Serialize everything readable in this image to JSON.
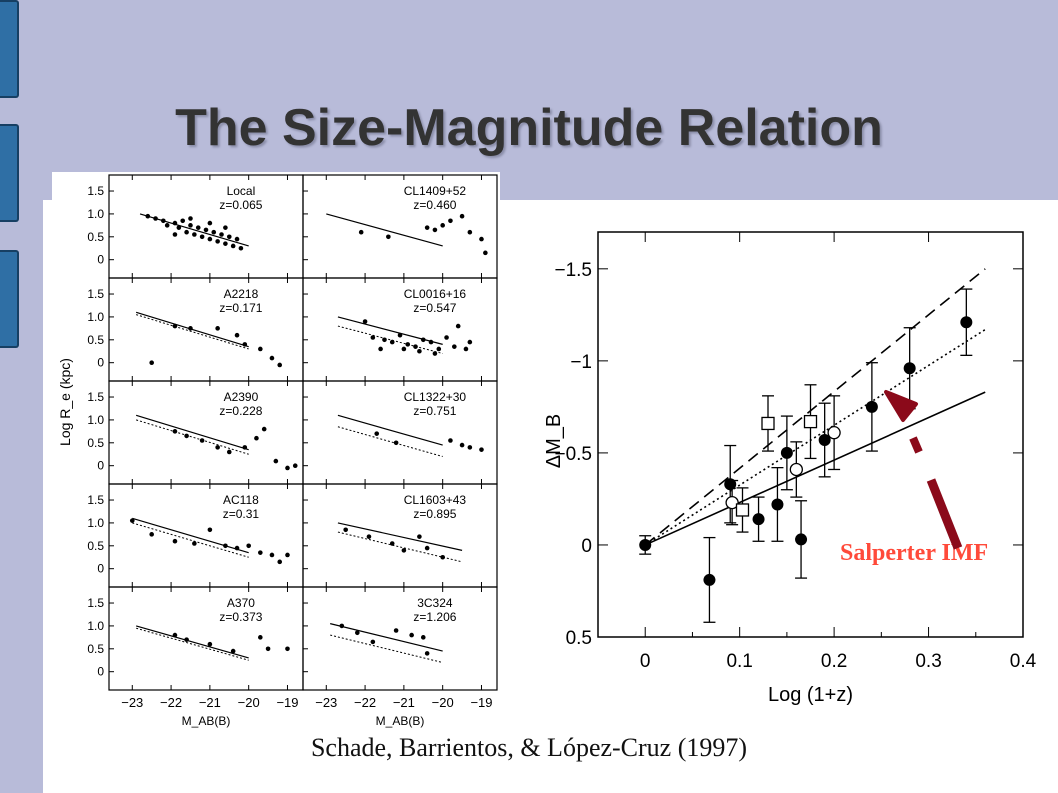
{
  "slide": {
    "title": "The Size-Magnitude Relation",
    "citation": "Schade, Barrientos, & López-Cruz (1997)",
    "annotation": "Salperter IMF",
    "colors": {
      "background": "#b8bbd9",
      "tab": "#2f6fa5",
      "annotation": "#ff4a3a",
      "arrow": "#8b0a1a"
    }
  },
  "chart_data": [
    {
      "type": "scatter",
      "layout_grid": "5x2",
      "ylabel": "Log R_e (kpc)",
      "xlabel": "M_AB(B)",
      "xlim": [
        -23.6,
        -18.6
      ],
      "ylim": [
        -0.4,
        1.85
      ],
      "xticks": [
        "−23",
        "−22",
        "−21",
        "−20",
        "−19"
      ],
      "yticks": [
        "1.5",
        "1.0",
        "0.5",
        "0"
      ],
      "panels": [
        {
          "name": "Local",
          "z": "z=0.065",
          "line": [
            [
              -22.8,
              1.0
            ],
            [
              -20.0,
              0.3
            ]
          ],
          "dotted": null,
          "points": [
            [
              -22.6,
              0.95
            ],
            [
              -22.4,
              0.9
            ],
            [
              -22.2,
              0.85
            ],
            [
              -22.1,
              0.75
            ],
            [
              -21.9,
              0.8
            ],
            [
              -21.8,
              0.7
            ],
            [
              -21.7,
              0.85
            ],
            [
              -21.6,
              0.6
            ],
            [
              -21.5,
              0.75
            ],
            [
              -21.4,
              0.55
            ],
            [
              -21.3,
              0.7
            ],
            [
              -21.2,
              0.5
            ],
            [
              -21.1,
              0.65
            ],
            [
              -21.0,
              0.45
            ],
            [
              -20.9,
              0.6
            ],
            [
              -20.8,
              0.4
            ],
            [
              -20.7,
              0.55
            ],
            [
              -20.6,
              0.35
            ],
            [
              -20.5,
              0.5
            ],
            [
              -20.4,
              0.3
            ],
            [
              -20.3,
              0.45
            ],
            [
              -20.2,
              0.25
            ],
            [
              -21.9,
              0.55
            ],
            [
              -21.5,
              0.9
            ],
            [
              -21.0,
              0.8
            ],
            [
              -20.6,
              0.7
            ]
          ]
        },
        {
          "name": "CL1409+52",
          "z": "z=0.460",
          "line": [
            [
              -23.0,
              1.0
            ],
            [
              -20.0,
              0.3
            ]
          ],
          "dotted": null,
          "points": [
            [
              -22.1,
              0.6
            ],
            [
              -21.4,
              0.5
            ],
            [
              -20.4,
              0.7
            ],
            [
              -20.2,
              0.65
            ],
            [
              -20.0,
              0.75
            ],
            [
              -19.8,
              0.85
            ],
            [
              -19.5,
              0.95
            ],
            [
              -19.3,
              0.6
            ],
            [
              -19.0,
              0.45
            ],
            [
              -18.9,
              0.15
            ]
          ]
        },
        {
          "name": "A2218",
          "z": "z=0.171",
          "line": [
            [
              -22.9,
              1.1
            ],
            [
              -20.0,
              0.35
            ]
          ],
          "dotted": [
            [
              -22.9,
              1.05
            ],
            [
              -20.0,
              0.3
            ]
          ],
          "points": [
            [
              -21.9,
              0.8
            ],
            [
              -21.5,
              0.75
            ],
            [
              -20.8,
              0.75
            ],
            [
              -20.3,
              0.6
            ],
            [
              -20.1,
              0.4
            ],
            [
              -19.7,
              0.3
            ],
            [
              -19.4,
              0.1
            ],
            [
              -19.2,
              -0.05
            ],
            [
              -22.5,
              0.0
            ]
          ]
        },
        {
          "name": "CL0016+16",
          "z": "z=0.547",
          "line": [
            [
              -22.7,
              1.0
            ],
            [
              -20.0,
              0.4
            ]
          ],
          "dotted": [
            [
              -22.7,
              0.8
            ],
            [
              -20.0,
              0.2
            ]
          ],
          "points": [
            [
              -22.0,
              0.9
            ],
            [
              -21.8,
              0.55
            ],
            [
              -21.5,
              0.5
            ],
            [
              -21.3,
              0.45
            ],
            [
              -21.1,
              0.6
            ],
            [
              -20.9,
              0.4
            ],
            [
              -20.7,
              0.35
            ],
            [
              -20.5,
              0.5
            ],
            [
              -20.3,
              0.45
            ],
            [
              -20.1,
              0.3
            ],
            [
              -19.9,
              0.55
            ],
            [
              -19.7,
              0.35
            ],
            [
              -19.6,
              0.8
            ],
            [
              -19.4,
              0.3
            ],
            [
              -19.3,
              0.45
            ],
            [
              -21.6,
              0.3
            ],
            [
              -21.0,
              0.3
            ],
            [
              -20.6,
              0.25
            ],
            [
              -20.2,
              0.2
            ]
          ]
        },
        {
          "name": "A2390",
          "z": "z=0.228",
          "line": [
            [
              -22.9,
              1.1
            ],
            [
              -20.0,
              0.35
            ]
          ],
          "dotted": [
            [
              -22.9,
              1.0
            ],
            [
              -20.0,
              0.25
            ]
          ],
          "points": [
            [
              -21.9,
              0.75
            ],
            [
              -21.6,
              0.65
            ],
            [
              -21.2,
              0.55
            ],
            [
              -20.8,
              0.4
            ],
            [
              -20.5,
              0.3
            ],
            [
              -20.1,
              0.4
            ],
            [
              -19.8,
              0.6
            ],
            [
              -19.6,
              0.8
            ],
            [
              -19.3,
              0.1
            ],
            [
              -19.0,
              -0.05
            ],
            [
              -18.8,
              0.0
            ]
          ]
        },
        {
          "name": "CL1322+30",
          "z": "z=0.751",
          "line": [
            [
              -22.7,
              1.1
            ],
            [
              -20.0,
              0.45
            ]
          ],
          "dotted": [
            [
              -22.7,
              0.85
            ],
            [
              -20.0,
              0.2
            ]
          ],
          "points": [
            [
              -21.7,
              0.7
            ],
            [
              -21.2,
              0.5
            ],
            [
              -19.8,
              0.55
            ],
            [
              -19.5,
              0.45
            ],
            [
              -19.3,
              0.4
            ],
            [
              -19.0,
              0.35
            ]
          ]
        },
        {
          "name": "AC118",
          "z": "z=0.31",
          "line": [
            [
              -23.0,
              1.1
            ],
            [
              -20.0,
              0.35
            ]
          ],
          "dotted": [
            [
              -23.0,
              1.0
            ],
            [
              -20.0,
              0.25
            ]
          ],
          "points": [
            [
              -23.0,
              1.05
            ],
            [
              -22.5,
              0.75
            ],
            [
              -21.9,
              0.6
            ],
            [
              -21.4,
              0.55
            ],
            [
              -21.0,
              0.85
            ],
            [
              -20.6,
              0.5
            ],
            [
              -20.3,
              0.45
            ],
            [
              -20.0,
              0.5
            ],
            [
              -19.7,
              0.35
            ],
            [
              -19.4,
              0.3
            ],
            [
              -19.2,
              0.15
            ],
            [
              -19.0,
              0.3
            ]
          ]
        },
        {
          "name": "CL1603+43",
          "z": "z=0.895",
          "line": [
            [
              -22.7,
              1.0
            ],
            [
              -19.5,
              0.4
            ]
          ],
          "dotted": [
            [
              -22.7,
              0.8
            ],
            [
              -19.5,
              0.15
            ]
          ],
          "points": [
            [
              -22.5,
              0.85
            ],
            [
              -21.9,
              0.7
            ],
            [
              -21.3,
              0.55
            ],
            [
              -21.0,
              0.4
            ],
            [
              -20.6,
              0.7
            ],
            [
              -20.4,
              0.45
            ],
            [
              -20.0,
              0.25
            ]
          ]
        },
        {
          "name": "A370",
          "z": "z=0.373",
          "line": [
            [
              -22.9,
              1.0
            ],
            [
              -20.0,
              0.3
            ]
          ],
          "dotted": [
            [
              -22.9,
              0.95
            ],
            [
              -20.0,
              0.25
            ]
          ],
          "points": [
            [
              -21.9,
              0.8
            ],
            [
              -21.6,
              0.7
            ],
            [
              -21.0,
              0.6
            ],
            [
              -20.4,
              0.45
            ],
            [
              -19.7,
              0.75
            ],
            [
              -19.5,
              0.5
            ],
            [
              -19.0,
              0.5
            ]
          ]
        },
        {
          "name": "3C324",
          "z": "z=1.206",
          "line": [
            [
              -22.9,
              1.05
            ],
            [
              -20.0,
              0.45
            ]
          ],
          "dotted": [
            [
              -22.9,
              0.8
            ],
            [
              -20.0,
              0.2
            ]
          ],
          "points": [
            [
              -22.6,
              1.0
            ],
            [
              -22.2,
              0.85
            ],
            [
              -21.8,
              0.65
            ],
            [
              -21.2,
              0.9
            ],
            [
              -20.8,
              0.8
            ],
            [
              -20.5,
              0.75
            ],
            [
              -20.4,
              0.4
            ]
          ]
        }
      ]
    },
    {
      "type": "scatter",
      "xlabel": "Log (1+z)",
      "ylabel": "ΔM_B",
      "xlim": [
        -0.05,
        0.4
      ],
      "ylim": [
        0.5,
        -1.7
      ],
      "xticks": [
        "0",
        "0.1",
        "0.2",
        "0.3",
        "0.4"
      ],
      "yticks": [
        "−1.5",
        "−1",
        "−0.5",
        "0",
        "0.5"
      ],
      "solid_line": [
        [
          0,
          0
        ],
        [
          0.36,
          -0.83
        ]
      ],
      "dashed_line": [
        [
          0,
          0
        ],
        [
          0.36,
          -1.5
        ]
      ],
      "dotted_line": [
        [
          0,
          0
        ],
        [
          0.36,
          -1.17
        ]
      ],
      "filled_points": [
        {
          "x": 0.0,
          "y": 0.0,
          "err": 0.05
        },
        {
          "x": 0.068,
          "y": 0.19,
          "err": 0.23
        },
        {
          "x": 0.09,
          "y": -0.33,
          "err": 0.21
        },
        {
          "x": 0.12,
          "y": -0.14,
          "err": 0.12
        },
        {
          "x": 0.14,
          "y": -0.22,
          "err": 0.2
        },
        {
          "x": 0.15,
          "y": -0.5,
          "err": 0.2
        },
        {
          "x": 0.165,
          "y": -0.03,
          "err": 0.21
        },
        {
          "x": 0.19,
          "y": -0.57,
          "err": 0.2
        },
        {
          "x": 0.24,
          "y": -0.75,
          "err": 0.24
        },
        {
          "x": 0.28,
          "y": -0.96,
          "err": 0.22
        },
        {
          "x": 0.34,
          "y": -1.21,
          "err": 0.18
        }
      ],
      "open_circles": [
        {
          "x": 0.092,
          "y": -0.23,
          "err": 0.12
        },
        {
          "x": 0.16,
          "y": -0.41,
          "err": 0.15
        },
        {
          "x": 0.2,
          "y": -0.61,
          "err": 0.2
        }
      ],
      "open_squares": [
        {
          "x": 0.103,
          "y": -0.19,
          "err": 0.12
        },
        {
          "x": 0.13,
          "y": -0.66,
          "err": 0.15
        },
        {
          "x": 0.175,
          "y": -0.67,
          "err": 0.2
        }
      ]
    }
  ]
}
